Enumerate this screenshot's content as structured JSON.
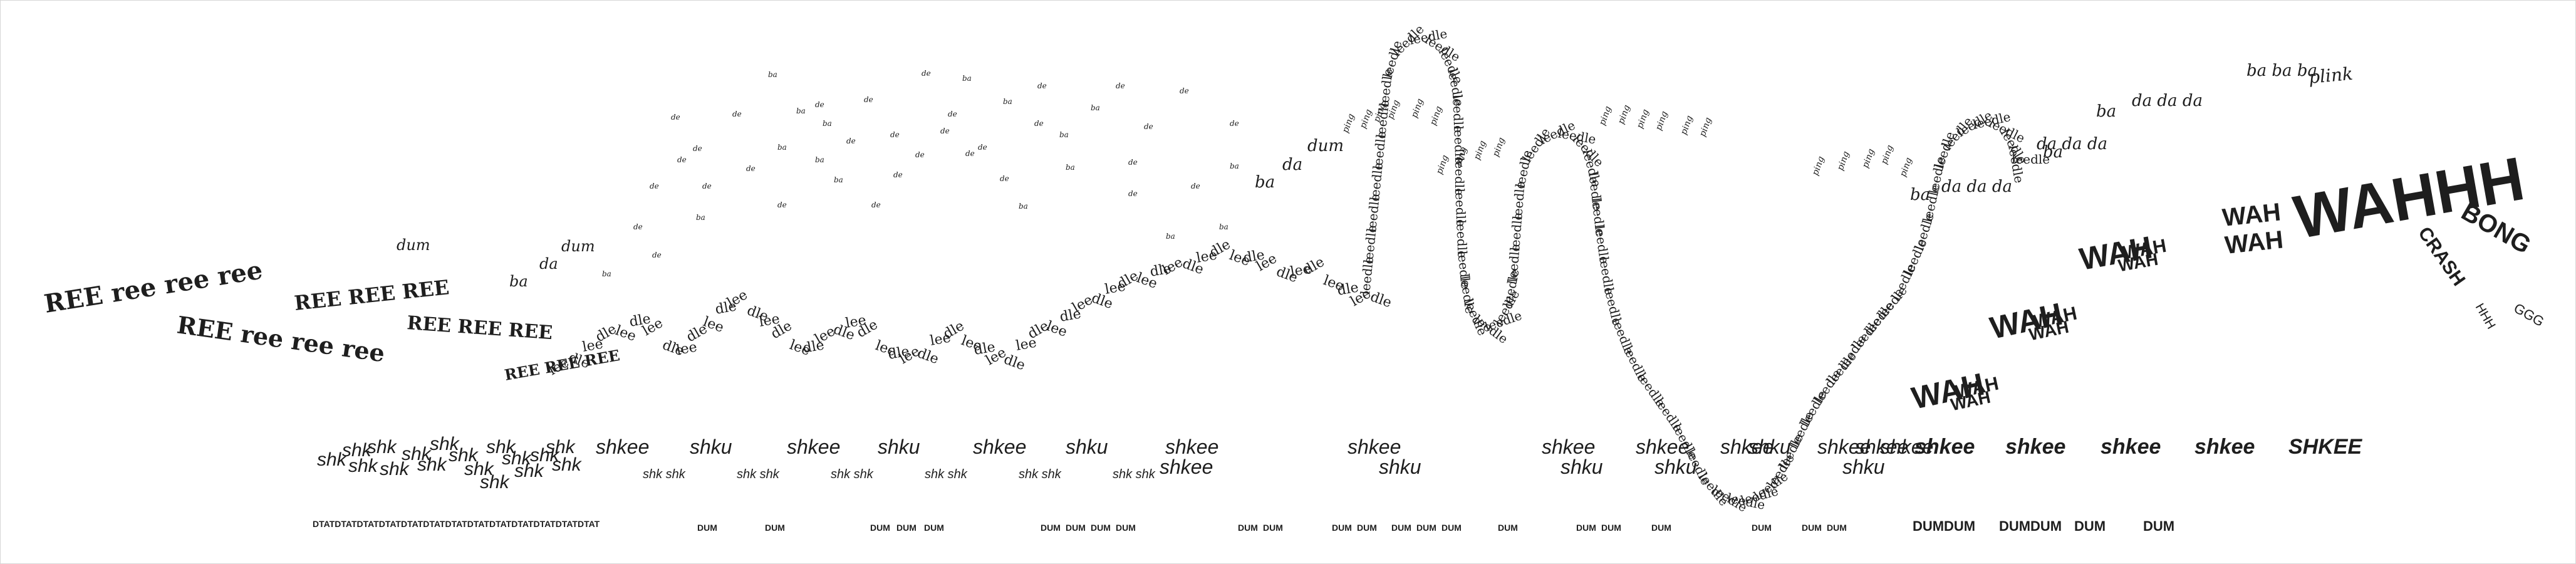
{
  "score": {
    "ree_words": [
      "REE ree ree ree",
      "REE ree ree ree",
      "REE REE REE",
      "REE REE REE",
      "REE REE REE"
    ],
    "scatter_words": {
      "dum": "dum",
      "da": "da",
      "ba": "ba",
      "de": "de"
    },
    "path_words": {
      "dle": "dle",
      "lee": "lee",
      "leedle": "leedle",
      "ping": "ping"
    },
    "right_words": {
      "dada": "da da da",
      "bababa": "ba ba ba",
      "plink": "plink"
    },
    "wah_words": {
      "wah": "WAH",
      "wahhh": "WAHHH",
      "bong": "BONG",
      "ggg": "GGG",
      "crash": "CRASH",
      "hhh": "HHH"
    },
    "shk_words": {
      "shk": "shk",
      "shku": "shku",
      "shkee": "shkee",
      "shkshk": "shk shk",
      "shkee_upper": "SHKEE"
    },
    "dum_words": {
      "tat": "DTATDTATDTATDTATDTATDTATDTATDTATDTATDTATDTATDTATDTAT",
      "dum": "DUM"
    }
  }
}
